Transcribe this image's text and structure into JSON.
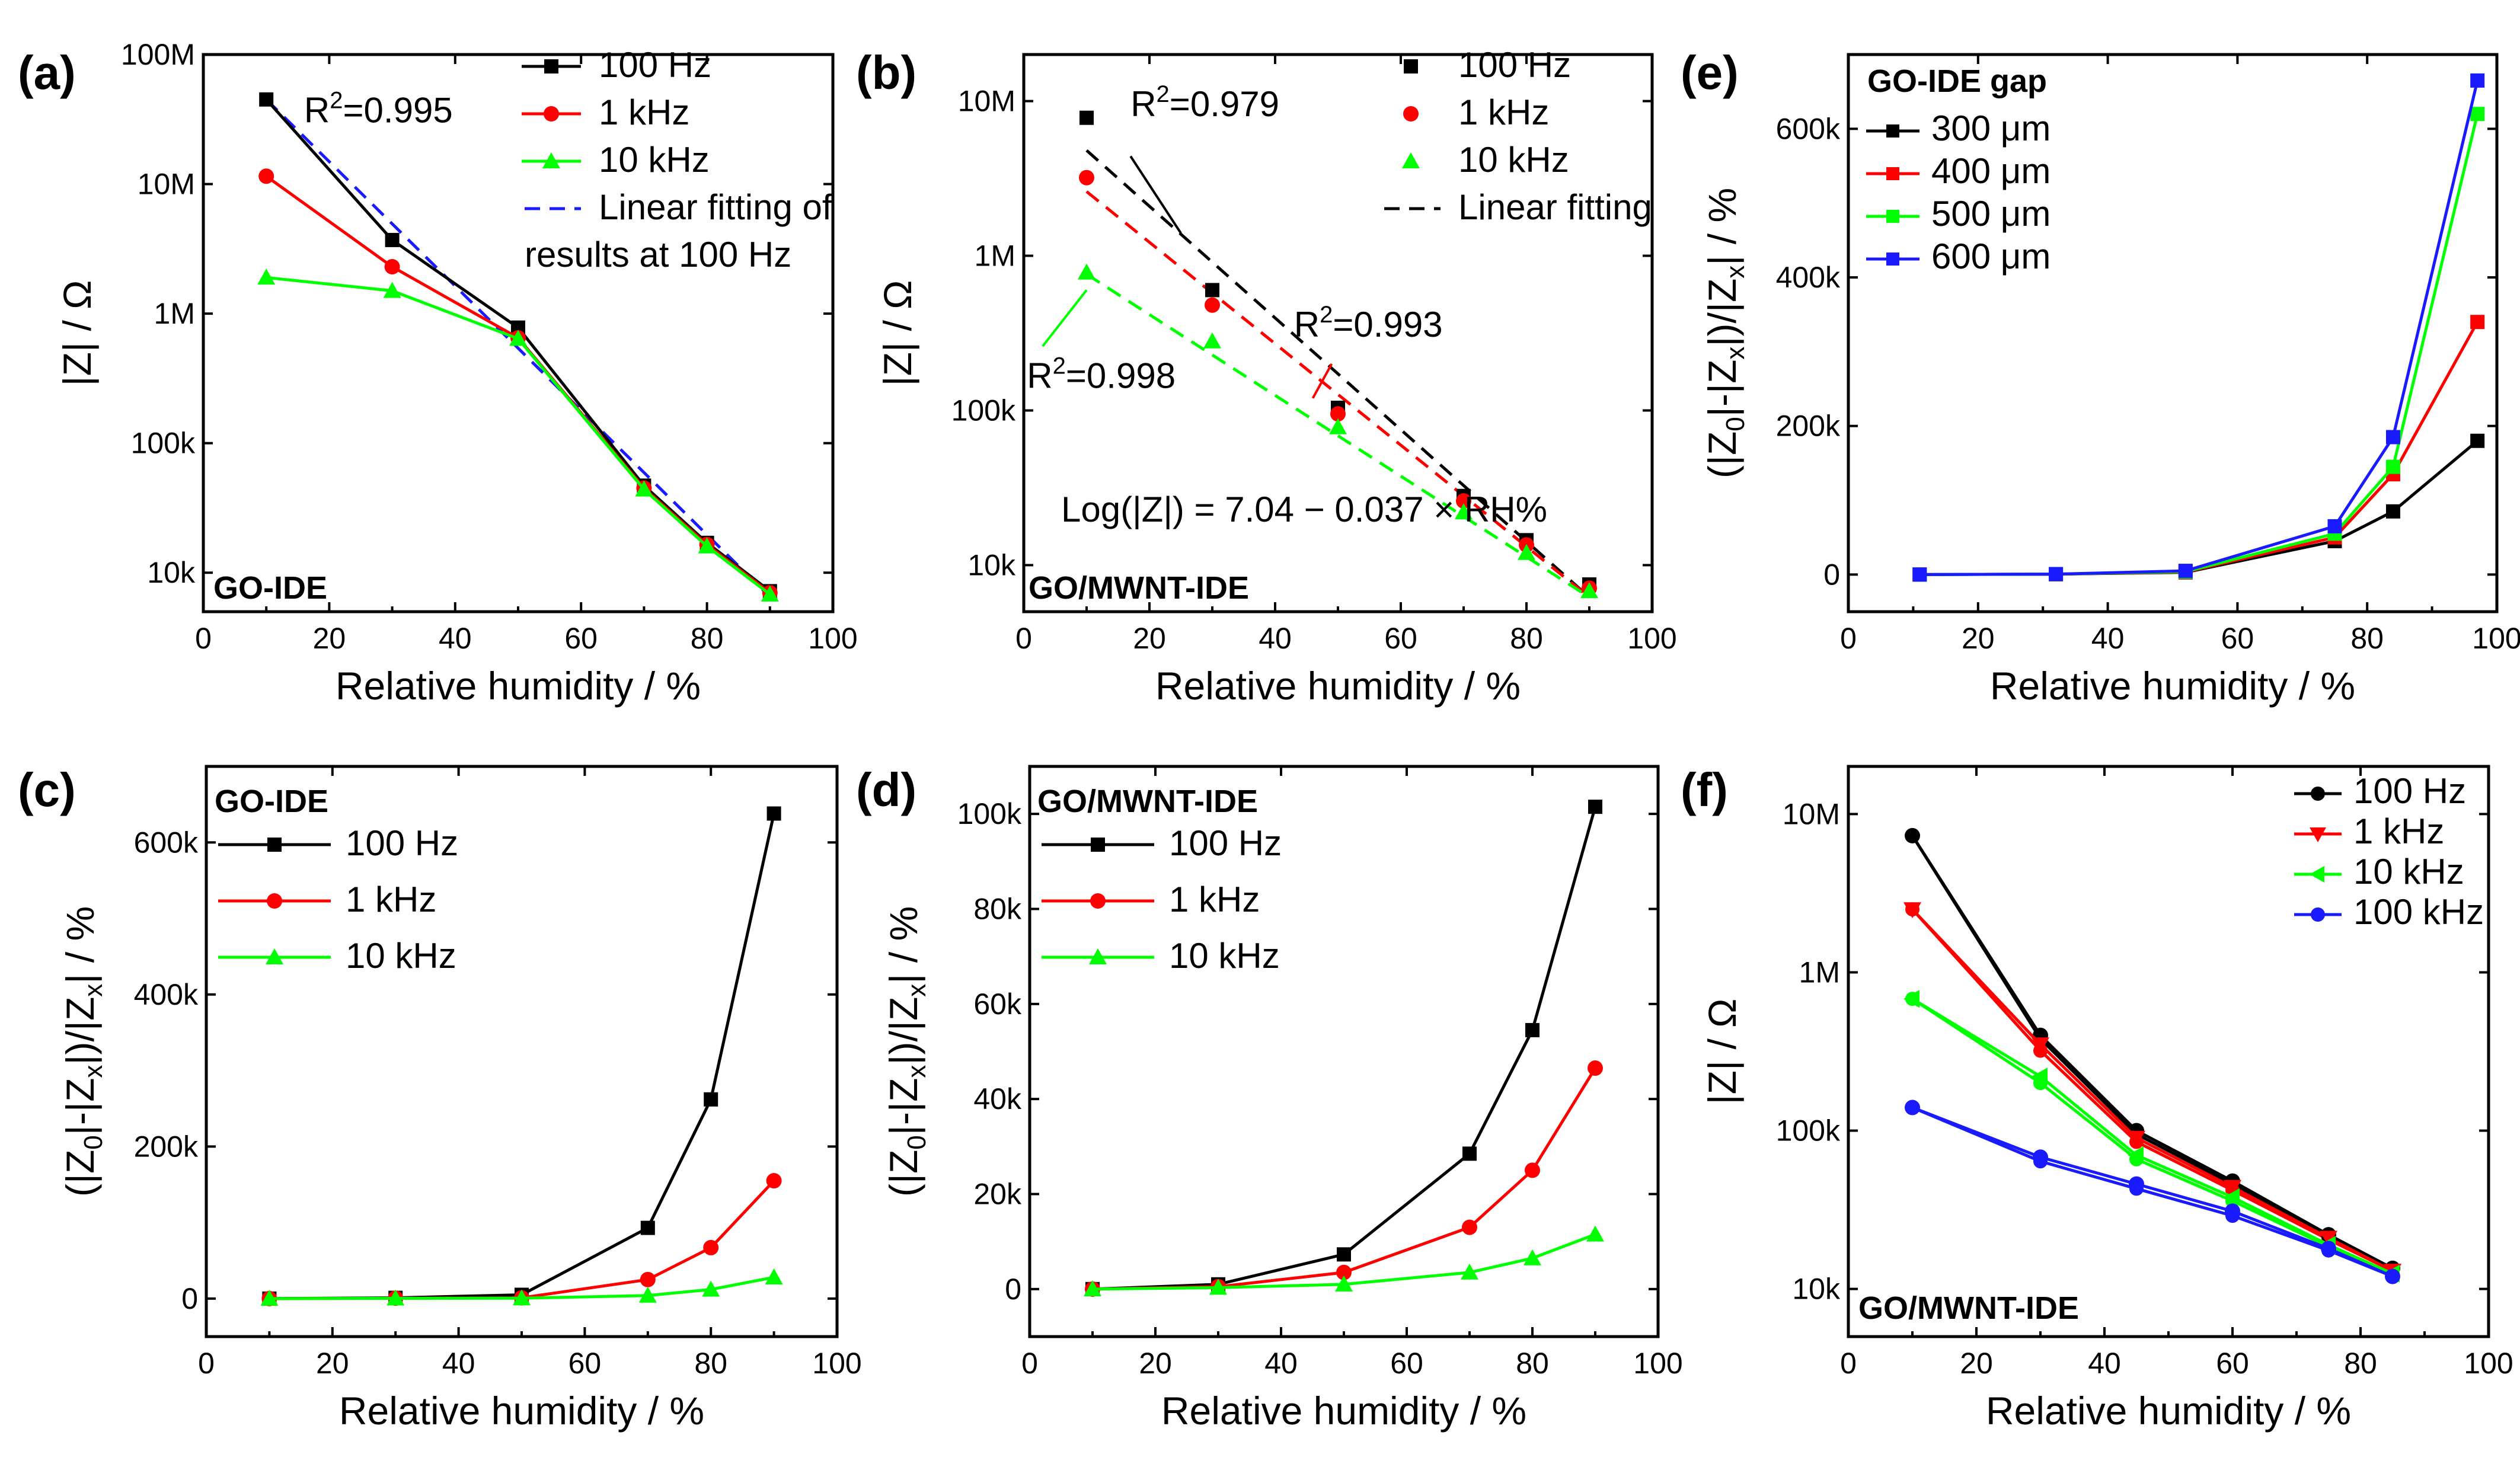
{
  "chart_data": [
    {
      "id": "a",
      "panel_label": "(a)",
      "type": "line",
      "yscale": "log",
      "xlabel": "Relative humidity / %",
      "ylabel": "|Z| / Ω",
      "xlim": [
        0,
        100
      ],
      "ylim": [
        5000,
        100000000
      ],
      "xticks": [
        0,
        20,
        40,
        60,
        80,
        100
      ],
      "yticks": [
        10000,
        100000,
        1000000,
        10000000,
        100000000
      ],
      "ytick_labels": [
        "10k",
        "100k",
        "1M",
        "10M",
        "100M"
      ],
      "tag": "GO-IDE",
      "x": [
        10,
        30,
        50,
        70,
        80,
        90
      ],
      "series": [
        {
          "name": "100 Hz",
          "color": "#000000",
          "marker": "square",
          "values": [
            45000000,
            3700000,
            780000,
            47000,
            17000,
            7200
          ]
        },
        {
          "name": " 1 kHz",
          "color": "#ff0000",
          "marker": "circle",
          "values": [
            11500000,
            2300000,
            650000,
            45000,
            16500,
            7000
          ]
        },
        {
          "name": "10 kHz",
          "color": "#00ff00",
          "marker": "triangle",
          "values": [
            1900000,
            1500000,
            640000,
            44000,
            16000,
            6800
          ]
        }
      ],
      "fits": [
        {
          "color": "#1a1aff",
          "x1": 10,
          "y1": 45000000,
          "x2": 90,
          "y2": 6500
        }
      ],
      "fit_legend": "Linear fitting of",
      "fit_legend_line2": "results at 100 Hz",
      "annotations": [
        {
          "text": "R",
          "sup": "2",
          "after": "=0.995",
          "color": "#000000",
          "x": 16,
          "y": 30000000
        }
      ]
    },
    {
      "id": "b",
      "panel_label": "(b)",
      "type": "scatter",
      "yscale": "log",
      "xlabel": "Relative humidity / %",
      "ylabel": "|Z| / Ω",
      "xlim": [
        0,
        100
      ],
      "ylim": [
        5000,
        20000000
      ],
      "xticks": [
        0,
        20,
        40,
        60,
        80,
        100
      ],
      "yticks": [
        10000,
        100000,
        1000000,
        10000000
      ],
      "ytick_labels": [
        "10k",
        "100k",
        "1M",
        "10M"
      ],
      "tag": "GO/MWNT-IDE",
      "x": [
        10,
        30,
        50,
        70,
        80,
        90
      ],
      "series": [
        {
          "name": "100 Hz",
          "color": "#000000",
          "marker": "square",
          "values": [
            7800000,
            600000,
            104000,
            28000,
            14500,
            7500
          ]
        },
        {
          "name": " 1 kHz",
          "color": "#ff0000",
          "marker": "circle",
          "values": [
            3200000,
            480000,
            95000,
            26000,
            13500,
            7100
          ]
        },
        {
          "name": "10 kHz",
          "color": "#00ff00",
          "marker": "triangle",
          "values": [
            780000,
            280000,
            78000,
            22000,
            12000,
            6800
          ]
        }
      ],
      "fits": [
        {
          "color": "#000000",
          "x1": 10,
          "y1": 4800000,
          "x2": 90,
          "y2": 6200
        },
        {
          "color": "#ff0000",
          "x1": 10,
          "y1": 2600000,
          "x2": 90,
          "y2": 6200
        },
        {
          "color": "#00ff00",
          "x1": 10,
          "y1": 760000,
          "x2": 90,
          "y2": 6200
        }
      ],
      "fit_legend": "Linear fitting",
      "equation": "Log(|Z|) = 7.04 − 0.037 × RH%",
      "annotations": [
        {
          "text": "R",
          "sup": "2",
          "after": "=0.979",
          "color": "#000000",
          "x": 17,
          "y": 8000000,
          "lx1": 17,
          "ly1": 4400000,
          "lx2": 25,
          "ly2": 1400000
        },
        {
          "text": "R",
          "sup": "2",
          "after": "=0.993",
          "color": "#ff0000",
          "x": 43,
          "y": 300000,
          "lx1": 49,
          "ly1": 200000,
          "lx2": 46,
          "ly2": 120000
        },
        {
          "text": "R",
          "sup": "2",
          "after": "=0.998",
          "color": "#00ff00",
          "x": 0.5,
          "y": 140000,
          "lx1": 10,
          "ly1": 600000,
          "lx2": 3,
          "ly2": 260000
        }
      ]
    },
    {
      "id": "e",
      "panel_label": "(e)",
      "type": "line",
      "yscale": "linear",
      "xlabel": "Relative humidity / %",
      "ylabel": "(|Z0|-|Zx|)/|Zx| / %",
      "xlim": [
        0,
        100
      ],
      "ylim": [
        -50000,
        700000
      ],
      "xticks": [
        0,
        20,
        40,
        60,
        80,
        100
      ],
      "yticks": [
        0,
        200000,
        400000,
        600000
      ],
      "ytick_labels": [
        "0",
        "200k",
        "400k",
        "600k"
      ],
      "tag": "GO-IDE gap",
      "x": [
        11,
        32,
        52,
        75,
        84,
        97
      ],
      "series": [
        {
          "name": "300 μm",
          "color": "#000000",
          "marker": "square",
          "values": [
            0,
            500,
            3000,
            45000,
            85000,
            180000
          ]
        },
        {
          "name": "400 μm",
          "color": "#ff0000",
          "marker": "square",
          "values": [
            0,
            500,
            3500,
            50000,
            135000,
            340000
          ]
        },
        {
          "name": "500 μm",
          "color": "#00ff00",
          "marker": "square",
          "values": [
            0,
            600,
            4000,
            55000,
            145000,
            620000
          ]
        },
        {
          "name": "600 μm",
          "color": "#1a1aff",
          "marker": "square",
          "values": [
            0,
            600,
            5000,
            65000,
            185000,
            665000
          ]
        }
      ]
    },
    {
      "id": "c",
      "panel_label": "(c)",
      "type": "line",
      "yscale": "linear",
      "xlabel": "Relative humidity / %",
      "ylabel": "(|Z0|-|Zx|)/|Zx| / %",
      "xlim": [
        0,
        100
      ],
      "ylim": [
        -50000,
        700000
      ],
      "xticks": [
        0,
        20,
        40,
        60,
        80,
        100
      ],
      "yticks": [
        0,
        200000,
        400000,
        600000
      ],
      "ytick_labels": [
        "0",
        "200k",
        "400k",
        "600k"
      ],
      "tag": "GO-IDE",
      "x": [
        10,
        30,
        50,
        70,
        80,
        90
      ],
      "series": [
        {
          "name": "100 Hz",
          "color": "#000000",
          "marker": "square",
          "values": [
            0,
            1000,
            5000,
            93000,
            262000,
            638000
          ]
        },
        {
          "name": " 1 kHz",
          "color": "#ff0000",
          "marker": "circle",
          "values": [
            0,
            500,
            1000,
            25000,
            67000,
            155000
          ]
        },
        {
          "name": "10 kHz",
          "color": "#00ff00",
          "marker": "triangle",
          "values": [
            0,
            300,
            500,
            4000,
            12000,
            28000
          ]
        }
      ]
    },
    {
      "id": "d",
      "panel_label": "(d)",
      "type": "line",
      "yscale": "linear",
      "xlabel": "Relative humidity / %",
      "ylabel": "(|Z0|-|Zx|)/|Zx| / %",
      "xlim": [
        0,
        100
      ],
      "ylim": [
        -10000,
        110000
      ],
      "xticks": [
        0,
        20,
        40,
        60,
        80,
        100
      ],
      "yticks": [
        0,
        20000,
        40000,
        60000,
        80000,
        100000
      ],
      "ytick_labels": [
        "0",
        "20k",
        "40k",
        "60k",
        "80k",
        "100k"
      ],
      "tag": "GO/MWNT-IDE",
      "x": [
        10,
        30,
        50,
        70,
        80,
        90
      ],
      "series": [
        {
          "name": "100 Hz",
          "color": "#000000",
          "marker": "square",
          "values": [
            0,
            1000,
            7300,
            28500,
            54500,
            101500
          ]
        },
        {
          "name": " 1 kHz",
          "color": "#ff0000",
          "marker": "circle",
          "values": [
            0,
            500,
            3500,
            13000,
            25000,
            46500
          ]
        },
        {
          "name": "10 kHz",
          "color": "#00ff00",
          "marker": "triangle",
          "values": [
            0,
            300,
            1000,
            3500,
            6500,
            11500
          ]
        }
      ]
    },
    {
      "id": "f",
      "panel_label": "(f)",
      "type": "line",
      "yscale": "log",
      "xlabel": "Relative humidity / %",
      "ylabel": "|Z| / Ω",
      "xlim": [
        0,
        100
      ],
      "ylim": [
        5000,
        20000000
      ],
      "xticks": [
        0,
        20,
        40,
        60,
        80,
        100
      ],
      "yticks": [
        10000,
        100000,
        1000000,
        10000000
      ],
      "ytick_labels": [
        "10k",
        "100k",
        "1M",
        "10M"
      ],
      "tag": "GO/MWNT-IDE",
      "x": [
        10,
        30,
        45,
        60,
        75,
        85
      ],
      "series": [
        {
          "name": "100 Hz",
          "color": "#000000",
          "marker": "circle",
          "values": [
            7300000,
            400000,
            100000,
            48000,
            22000,
            13500
          ]
        },
        {
          "name": "1 kHz",
          "color": "#ff0000",
          "marker": "triangle-down",
          "values": [
            2500000,
            350000,
            90000,
            44000,
            21000,
            13000
          ]
        },
        {
          "name": "10 kHz",
          "color": "#00ff00",
          "marker": "triangle-left",
          "values": [
            680000,
            220000,
            70000,
            38000,
            19000,
            12500
          ]
        },
        {
          "name": "100 kHz",
          "color": "#1a1aff",
          "marker": "circle",
          "values": [
            140000,
            68000,
            46000,
            31000,
            18000,
            12000
          ]
        }
      ],
      "series_dup": [
        {
          "color": "#000000",
          "values": [
            7300000,
            380000,
            95000,
            46000,
            21500,
            13500
          ]
        },
        {
          "color": "#ff0000",
          "values": [
            2500000,
            320000,
            85000,
            42000,
            20500,
            13000
          ]
        },
        {
          "color": "#00ff00",
          "values": [
            680000,
            200000,
            66000,
            36000,
            18500,
            12500
          ]
        },
        {
          "color": "#1a1aff",
          "values": [
            140000,
            64000,
            43000,
            29000,
            17500,
            12000
          ]
        }
      ]
    }
  ]
}
